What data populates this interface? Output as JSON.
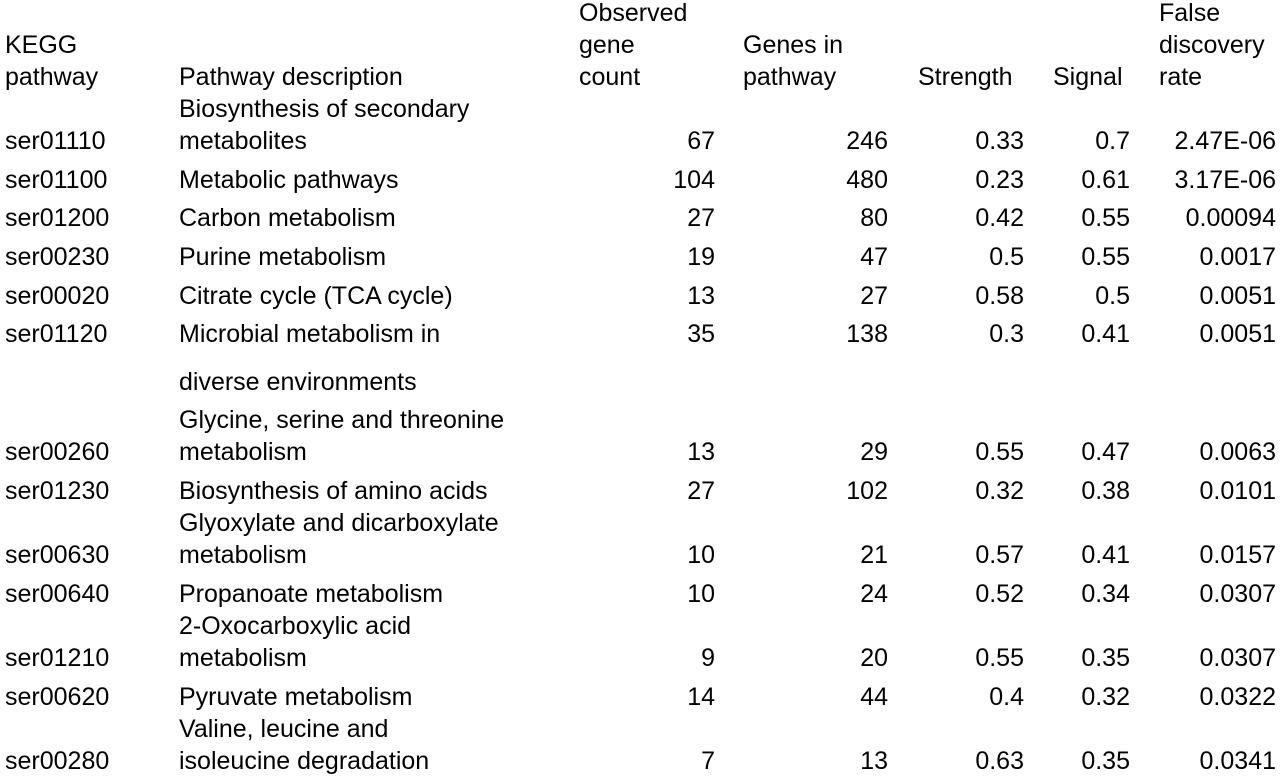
{
  "headers": {
    "kegg": "KEGG\npathway",
    "description": "Pathway description",
    "observed": "Observed\ngene\ncount",
    "genes_in_pathway": "Genes in\npathway",
    "strength": "Strength",
    "signal": "Signal",
    "fdr": "False\ndiscovery\nrate"
  },
  "rows": [
    {
      "id": "ser01110",
      "description": "Biosynthesis of secondary\nmetabolites",
      "observed": "67",
      "genes": "246",
      "strength": "0.33",
      "signal": "0.7",
      "fdr": "2.47E-06"
    },
    {
      "id": "ser01100",
      "description": "Metabolic pathways",
      "observed": "104",
      "genes": "480",
      "strength": "0.23",
      "signal": "0.61",
      "fdr": "3.17E-06"
    },
    {
      "id": "ser01200",
      "description": "Carbon metabolism",
      "observed": "27",
      "genes": "80",
      "strength": "0.42",
      "signal": "0.55",
      "fdr": "0.00094"
    },
    {
      "id": "ser00230",
      "description": "Purine metabolism",
      "observed": "19",
      "genes": "47",
      "strength": "0.5",
      "signal": "0.55",
      "fdr": "0.0017"
    },
    {
      "id": "ser00020",
      "description": "Citrate cycle (TCA cycle)",
      "observed": "13",
      "genes": "27",
      "strength": "0.58",
      "signal": "0.5",
      "fdr": "0.0051"
    },
    {
      "id": "ser01120",
      "description": "Microbial metabolism in",
      "description_cont": "diverse environments",
      "observed": "35",
      "genes": "138",
      "strength": "0.3",
      "signal": "0.41",
      "fdr": "0.0051"
    },
    {
      "id": "ser00260",
      "description": "Glycine, serine and threonine\nmetabolism",
      "observed": "13",
      "genes": "29",
      "strength": "0.55",
      "signal": "0.47",
      "fdr": "0.0063"
    },
    {
      "id": "ser01230",
      "description": "Biosynthesis of amino acids",
      "observed": "27",
      "genes": "102",
      "strength": "0.32",
      "signal": "0.38",
      "fdr": "0.0101"
    },
    {
      "id": "ser00630",
      "description": "Glyoxylate and dicarboxylate\nmetabolism",
      "observed": "10",
      "genes": "21",
      "strength": "0.57",
      "signal": "0.41",
      "fdr": "0.0157"
    },
    {
      "id": "ser00640",
      "description": "Propanoate metabolism",
      "observed": "10",
      "genes": "24",
      "strength": "0.52",
      "signal": "0.34",
      "fdr": "0.0307"
    },
    {
      "id": "ser01210",
      "description": "2-Oxocarboxylic acid\nmetabolism",
      "observed": "9",
      "genes": "20",
      "strength": "0.55",
      "signal": "0.35",
      "fdr": "0.0307"
    },
    {
      "id": "ser00620",
      "description": "Pyruvate metabolism",
      "observed": "14",
      "genes": "44",
      "strength": "0.4",
      "signal": "0.32",
      "fdr": "0.0322"
    },
    {
      "id": "ser00280",
      "description": "Valine, leucine and\nisoleucine degradation",
      "observed": "7",
      "genes": "13",
      "strength": "0.63",
      "signal": "0.35",
      "fdr": "0.0341"
    }
  ]
}
